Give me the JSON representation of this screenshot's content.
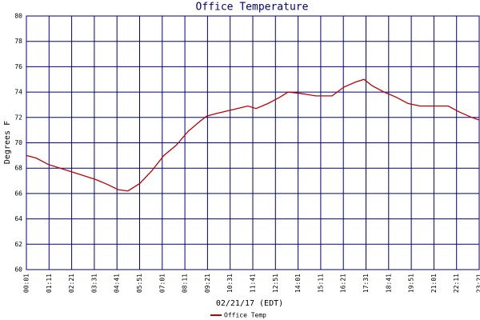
{
  "chart_data": {
    "type": "line",
    "title": "Office Temperature",
    "y_label": "Degrees F",
    "x_label": "02/21/17 (EDT)",
    "x": [
      1,
      31,
      68,
      117,
      167,
      216,
      253,
      285,
      315,
      352,
      389,
      426,
      464,
      501,
      538,
      558,
      587,
      637,
      686,
      711,
      748,
      785,
      810,
      847,
      896,
      946,
      983,
      1020,
      1045,
      1070,
      1107,
      1144,
      1181,
      1218,
      1268,
      1305,
      1342,
      1378,
      1401
    ],
    "series": [
      {
        "name": "Office Temp",
        "color": "#c00000",
        "values": [
          69.0,
          68.8,
          68.3,
          67.9,
          67.5,
          67.1,
          66.7,
          66.3,
          66.2,
          66.8,
          67.8,
          69.0,
          69.8,
          70.9,
          71.7,
          72.1,
          72.3,
          72.6,
          72.9,
          72.7,
          73.1,
          73.6,
          74.0,
          73.9,
          73.7,
          73.7,
          74.4,
          74.8,
          75.0,
          74.5,
          74.0,
          73.6,
          73.1,
          72.9,
          72.9,
          72.9,
          72.4,
          72.0,
          71.8
        ]
      }
    ],
    "xlim": [
      1,
      1401
    ],
    "xticks": [
      {
        "value": 1,
        "label": "00:01"
      },
      {
        "value": 71,
        "label": "01:11"
      },
      {
        "value": 141,
        "label": "02:21"
      },
      {
        "value": 211,
        "label": "03:31"
      },
      {
        "value": 281,
        "label": "04:41"
      },
      {
        "value": 351,
        "label": "05:51"
      },
      {
        "value": 421,
        "label": "07:01"
      },
      {
        "value": 491,
        "label": "08:11"
      },
      {
        "value": 561,
        "label": "09:21"
      },
      {
        "value": 631,
        "label": "10:31"
      },
      {
        "value": 701,
        "label": "11:41"
      },
      {
        "value": 771,
        "label": "12:51"
      },
      {
        "value": 841,
        "label": "14:01"
      },
      {
        "value": 911,
        "label": "15:11"
      },
      {
        "value": 981,
        "label": "16:21"
      },
      {
        "value": 1051,
        "label": "17:31"
      },
      {
        "value": 1121,
        "label": "18:41"
      },
      {
        "value": 1191,
        "label": "19:51"
      },
      {
        "value": 1261,
        "label": "21:01"
      },
      {
        "value": 1331,
        "label": "22:11"
      },
      {
        "value": 1401,
        "label": "23:21"
      }
    ],
    "ylim": [
      60,
      80
    ],
    "yticks": [
      60,
      62,
      64,
      66,
      68,
      70,
      72,
      74,
      76,
      78,
      80
    ],
    "grid": true
  }
}
